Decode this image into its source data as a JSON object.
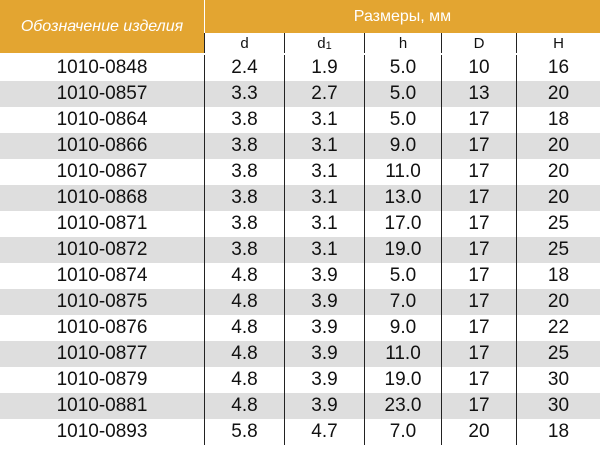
{
  "table": {
    "header": {
      "designation": "Обозначение изделия",
      "dimensions": "Размеры, мм"
    },
    "columns": [
      {
        "text": "d"
      },
      {
        "text": "d",
        "sub": "1"
      },
      {
        "text": "h"
      },
      {
        "text": "D"
      },
      {
        "text": "H"
      }
    ],
    "rows": [
      [
        "1010-0848",
        "2.4",
        "1.9",
        "5.0",
        "10",
        "16"
      ],
      [
        "1010-0857",
        "3.3",
        "2.7",
        "5.0",
        "13",
        "20"
      ],
      [
        "1010-0864",
        "3.8",
        "3.1",
        "5.0",
        "17",
        "18"
      ],
      [
        "1010-0866",
        "3.8",
        "3.1",
        "9.0",
        "17",
        "20"
      ],
      [
        "1010-0867",
        "3.8",
        "3.1",
        "11.0",
        "17",
        "20"
      ],
      [
        "1010-0868",
        "3.8",
        "3.1",
        "13.0",
        "17",
        "20"
      ],
      [
        "1010-0871",
        "3.8",
        "3.1",
        "17.0",
        "17",
        "25"
      ],
      [
        "1010-0872",
        "3.8",
        "3.1",
        "19.0",
        "17",
        "25"
      ],
      [
        "1010-0874",
        "4.8",
        "3.9",
        "5.0",
        "17",
        "18"
      ],
      [
        "1010-0875",
        "4.8",
        "3.9",
        "7.0",
        "17",
        "20"
      ],
      [
        "1010-0876",
        "4.8",
        "3.9",
        "9.0",
        "17",
        "22"
      ],
      [
        "1010-0877",
        "4.8",
        "3.9",
        "11.0",
        "17",
        "25"
      ],
      [
        "1010-0879",
        "4.8",
        "3.9",
        "19.0",
        "17",
        "30"
      ],
      [
        "1010-0881",
        "4.8",
        "3.9",
        "23.0",
        "17",
        "30"
      ],
      [
        "1010-0893",
        "5.8",
        "4.7",
        "7.0",
        "20",
        "18"
      ]
    ]
  }
}
